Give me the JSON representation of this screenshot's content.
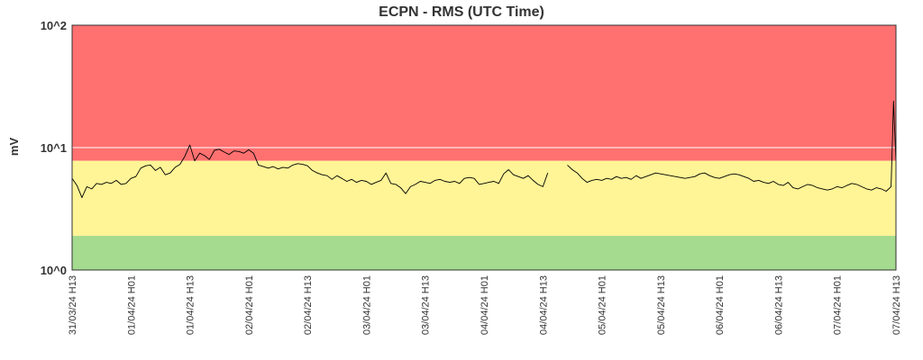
{
  "chart_data": {
    "type": "line",
    "title": "ECPN - RMS (UTC Time)",
    "ylabel": "mV",
    "xlabel": "",
    "yscale": "log",
    "ylim": [
      1,
      100
    ],
    "ytick_labels": [
      "10^2",
      "10^1",
      "10^0"
    ],
    "xtick_labels": [
      "31/03/24 H13",
      "01/04/24 H01",
      "01/04/24 H13",
      "02/04/24 H01",
      "02/04/24 H13",
      "03/04/24 H01",
      "03/04/24 H13",
      "04/04/24 H01",
      "04/04/24 H13",
      "05/04/24 H01",
      "05/04/24 H13",
      "06/04/24 H01",
      "06/04/24 H13",
      "07/04/24 H01",
      "07/04/24 H13"
    ],
    "xlim_hours": [
      0,
      168
    ],
    "bands": [
      {
        "name": "red",
        "from": 7.8,
        "to": 100,
        "color": "#ff7070"
      },
      {
        "name": "yellow",
        "from": 1.9,
        "to": 7.8,
        "color": "#fff496"
      },
      {
        "name": "green",
        "from": 1,
        "to": 1.9,
        "color": "#a4db8f"
      }
    ],
    "grid": "horizontal at decades",
    "line_color": "#000000",
    "series": [
      {
        "values": [
          [
            0,
            5.6
          ],
          [
            1,
            4.9
          ],
          [
            2,
            3.9
          ],
          [
            3,
            4.8
          ],
          [
            4,
            4.6
          ],
          [
            5,
            5.1
          ],
          [
            6,
            5.0
          ],
          [
            7,
            5.2
          ],
          [
            8,
            5.1
          ],
          [
            9,
            5.4
          ],
          [
            10,
            5.0
          ],
          [
            11,
            5.1
          ],
          [
            12,
            5.6
          ],
          [
            13,
            5.8
          ],
          [
            14,
            6.8
          ],
          [
            15,
            7.1
          ],
          [
            16,
            7.2
          ],
          [
            17,
            6.5
          ],
          [
            18,
            6.9
          ],
          [
            19,
            6.0
          ],
          [
            20,
            6.2
          ],
          [
            21,
            6.9
          ],
          [
            22,
            7.3
          ],
          [
            23,
            8.5
          ],
          [
            24,
            10.5
          ],
          [
            25,
            7.8
          ],
          [
            26,
            9.0
          ],
          [
            27,
            8.6
          ],
          [
            28,
            8.0
          ],
          [
            29,
            9.5
          ],
          [
            30,
            9.7
          ],
          [
            31,
            9.2
          ],
          [
            32,
            8.8
          ],
          [
            33,
            9.4
          ],
          [
            34,
            9.3
          ],
          [
            35,
            9.0
          ],
          [
            36,
            9.6
          ],
          [
            37,
            9.0
          ],
          [
            38,
            7.2
          ],
          [
            39,
            7.0
          ],
          [
            40,
            6.8
          ],
          [
            41,
            7.0
          ],
          [
            42,
            6.7
          ],
          [
            43,
            6.9
          ],
          [
            44,
            6.8
          ],
          [
            45,
            7.2
          ],
          [
            46,
            7.4
          ],
          [
            47,
            7.3
          ],
          [
            48,
            7.1
          ],
          [
            49,
            6.5
          ],
          [
            50,
            6.2
          ],
          [
            51,
            6.0
          ],
          [
            52,
            5.9
          ],
          [
            53,
            5.5
          ],
          [
            54,
            5.9
          ],
          [
            55,
            5.6
          ],
          [
            56,
            5.3
          ],
          [
            57,
            5.5
          ],
          [
            58,
            5.2
          ],
          [
            59,
            5.4
          ],
          [
            60,
            5.3
          ],
          [
            61,
            5.0
          ],
          [
            62,
            5.2
          ],
          [
            63,
            5.4
          ],
          [
            64,
            6.2
          ],
          [
            65,
            5.1
          ],
          [
            66,
            5.0
          ],
          [
            67,
            4.7
          ],
          [
            68,
            4.2
          ],
          [
            69,
            4.8
          ],
          [
            70,
            5.0
          ],
          [
            71,
            5.3
          ],
          [
            72,
            5.2
          ],
          [
            73,
            5.1
          ],
          [
            74,
            5.4
          ],
          [
            75,
            5.5
          ],
          [
            76,
            5.3
          ],
          [
            77,
            5.2
          ],
          [
            78,
            5.3
          ],
          [
            79,
            5.1
          ],
          [
            80,
            5.6
          ],
          [
            81,
            5.7
          ],
          [
            82,
            5.6
          ],
          [
            83,
            5.0
          ],
          [
            84,
            5.1
          ],
          [
            85,
            5.2
          ],
          [
            86,
            5.3
          ],
          [
            87,
            5.1
          ],
          [
            88,
            6.1
          ],
          [
            89,
            6.6
          ],
          [
            90,
            6.0
          ],
          [
            91,
            5.8
          ],
          [
            92,
            5.6
          ],
          [
            93,
            5.9
          ],
          [
            94,
            5.4
          ],
          [
            95,
            5.0
          ],
          [
            96,
            4.8
          ],
          [
            97,
            6.2
          ],
          [
            98,
            null
          ],
          [
            99,
            null
          ],
          [
            100,
            null
          ],
          [
            101,
            7.2
          ],
          [
            102,
            6.6
          ],
          [
            103,
            6.2
          ],
          [
            104,
            5.6
          ],
          [
            105,
            5.2
          ],
          [
            106,
            5.4
          ],
          [
            107,
            5.5
          ],
          [
            108,
            5.4
          ],
          [
            109,
            5.6
          ],
          [
            110,
            5.5
          ],
          [
            111,
            5.8
          ],
          [
            112,
            5.6
          ],
          [
            113,
            5.7
          ],
          [
            114,
            5.5
          ],
          [
            115,
            5.9
          ],
          [
            116,
            5.6
          ],
          [
            117,
            5.8
          ],
          [
            118,
            6.0
          ],
          [
            119,
            6.2
          ],
          [
            120,
            6.1
          ],
          [
            121,
            6.0
          ],
          [
            122,
            5.9
          ],
          [
            123,
            5.8
          ],
          [
            124,
            5.7
          ],
          [
            125,
            5.6
          ],
          [
            126,
            5.7
          ],
          [
            127,
            5.8
          ],
          [
            128,
            6.1
          ],
          [
            129,
            6.2
          ],
          [
            130,
            5.9
          ],
          [
            131,
            5.7
          ],
          [
            132,
            5.6
          ],
          [
            133,
            5.8
          ],
          [
            134,
            6.0
          ],
          [
            135,
            6.1
          ],
          [
            136,
            6.0
          ],
          [
            137,
            5.8
          ],
          [
            138,
            5.6
          ],
          [
            139,
            5.3
          ],
          [
            140,
            5.4
          ],
          [
            141,
            5.2
          ],
          [
            142,
            5.1
          ],
          [
            143,
            5.3
          ],
          [
            144,
            5.0
          ],
          [
            145,
            4.9
          ],
          [
            146,
            5.2
          ],
          [
            147,
            4.7
          ],
          [
            148,
            4.6
          ],
          [
            149,
            4.8
          ],
          [
            150,
            5.0
          ],
          [
            151,
            4.9
          ],
          [
            152,
            4.7
          ],
          [
            153,
            4.6
          ],
          [
            154,
            4.5
          ],
          [
            155,
            4.6
          ],
          [
            156,
            4.8
          ],
          [
            157,
            4.7
          ],
          [
            158,
            4.9
          ],
          [
            159,
            5.1
          ],
          [
            160,
            5.0
          ],
          [
            161,
            4.8
          ],
          [
            162,
            4.6
          ],
          [
            163,
            4.5
          ],
          [
            164,
            4.7
          ],
          [
            165,
            4.6
          ],
          [
            166,
            4.4
          ],
          [
            167,
            4.8
          ],
          [
            167.5,
            24.0
          ],
          [
            168,
            7.5
          ]
        ]
      }
    ]
  }
}
